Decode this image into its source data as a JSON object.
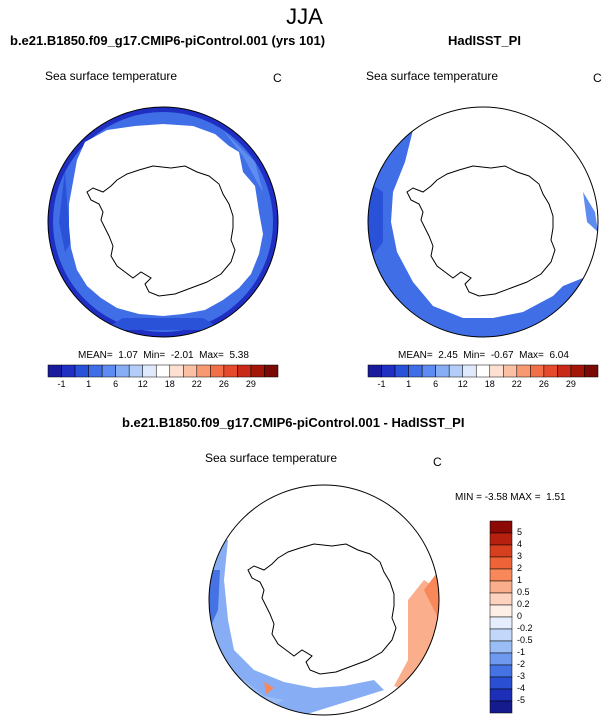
{
  "main_title": "JJA",
  "panels": {
    "model": {
      "title": "b.e21.B1850.f09_g17.CMIP6-piControl.001 (yrs 101)",
      "variable": "Sea surface temperature",
      "units": "C",
      "stats": "MEAN=  1.07  Min=  -2.01  Max=  5.38"
    },
    "obs": {
      "title": "HadISST_PI",
      "variable": "Sea surface temperature",
      "units": "C",
      "stats": "MEAN=  2.45  Min=  -0.67  Max=  6.04"
    },
    "diff": {
      "title": "b.e21.B1850.f09_g17.CMIP6-piControl.001 - HadISST_PI",
      "variable": "Sea surface temperature",
      "units": "C",
      "stats": "MIN = -3.58 MAX =  1.51"
    }
  },
  "colorbars": {
    "absolute": {
      "labels": [
        "-1",
        "1",
        "6",
        "12",
        "18",
        "22",
        "26",
        "29"
      ],
      "colors": [
        "#1a1a9c",
        "#1f2fc4",
        "#2a52d8",
        "#3f6ee6",
        "#5f8cf0",
        "#87aef5",
        "#b3cdf8",
        "#dfeafc",
        "#ffffff",
        "#fde0d2",
        "#fbbfa3",
        "#f79a72",
        "#f1704a",
        "#e54a2c",
        "#c92a17",
        "#a31509",
        "#7a0a05"
      ]
    },
    "diff": {
      "labels": [
        "5",
        "4",
        "3",
        "2",
        "1",
        "0.5",
        "0.2",
        "0",
        "-0.2",
        "-0.5",
        "-1",
        "-2",
        "-3",
        "-4",
        "-5"
      ],
      "colors": [
        "#8b0a05",
        "#b6200f",
        "#d6401f",
        "#ee6337",
        "#f8875a",
        "#fbae8b",
        "#fdd2be",
        "#fdeee6",
        "#e4eefc",
        "#c3d7fa",
        "#9bbdf6",
        "#6e99ef",
        "#4673e4",
        "#2a4fd2",
        "#1c2fb6",
        "#151a8c"
      ]
    }
  }
}
